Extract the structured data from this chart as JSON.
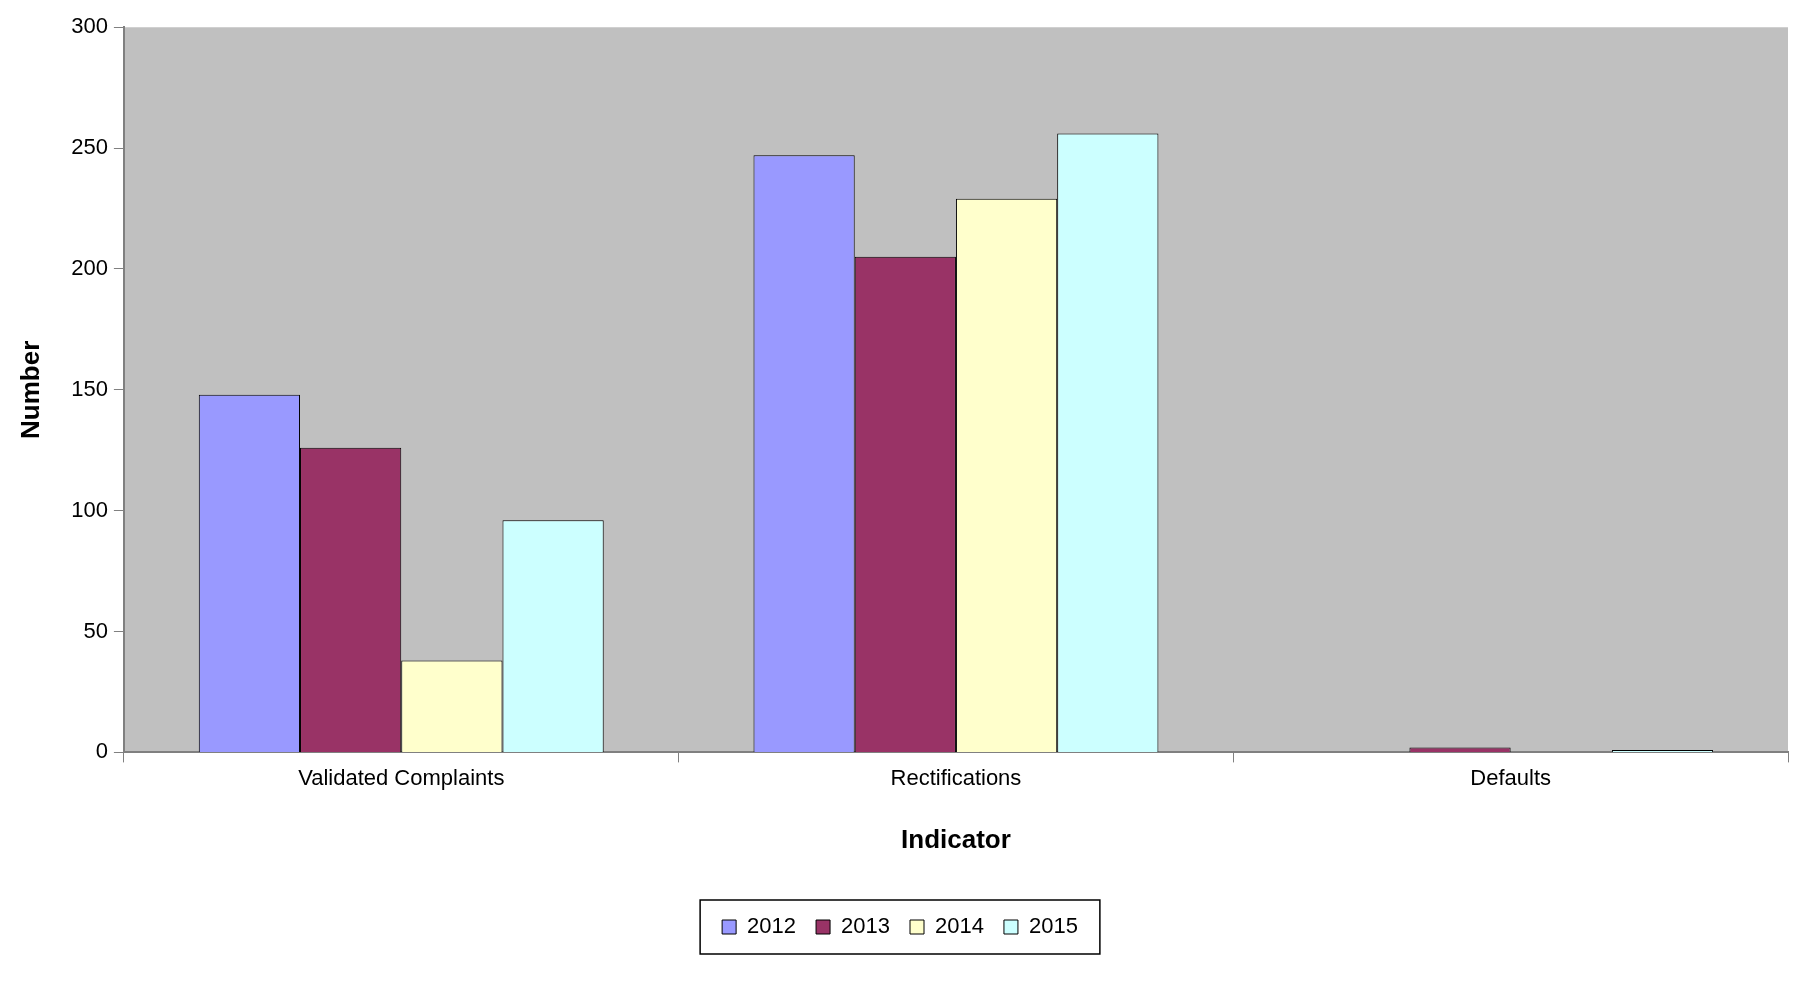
{
  "chart_data": {
    "type": "bar",
    "xlabel": "Indicator",
    "ylabel": "Number",
    "categories": [
      "Validated Complaints",
      "Rectifications",
      "Defaults"
    ],
    "series": [
      {
        "name": "2012",
        "color": "#9999ff",
        "values": [
          148,
          247,
          0
        ]
      },
      {
        "name": "2013",
        "color": "#993366",
        "values": [
          126,
          205,
          2
        ]
      },
      {
        "name": "2014",
        "color": "#ffffcc",
        "values": [
          38,
          229,
          0
        ]
      },
      {
        "name": "2015",
        "color": "#ccffff",
        "values": [
          96,
          256,
          1
        ]
      }
    ],
    "ylim": [
      0,
      300
    ],
    "yticks": [
      0,
      50,
      100,
      150,
      200,
      250,
      300
    ],
    "grid": false,
    "legend": "bottom"
  }
}
